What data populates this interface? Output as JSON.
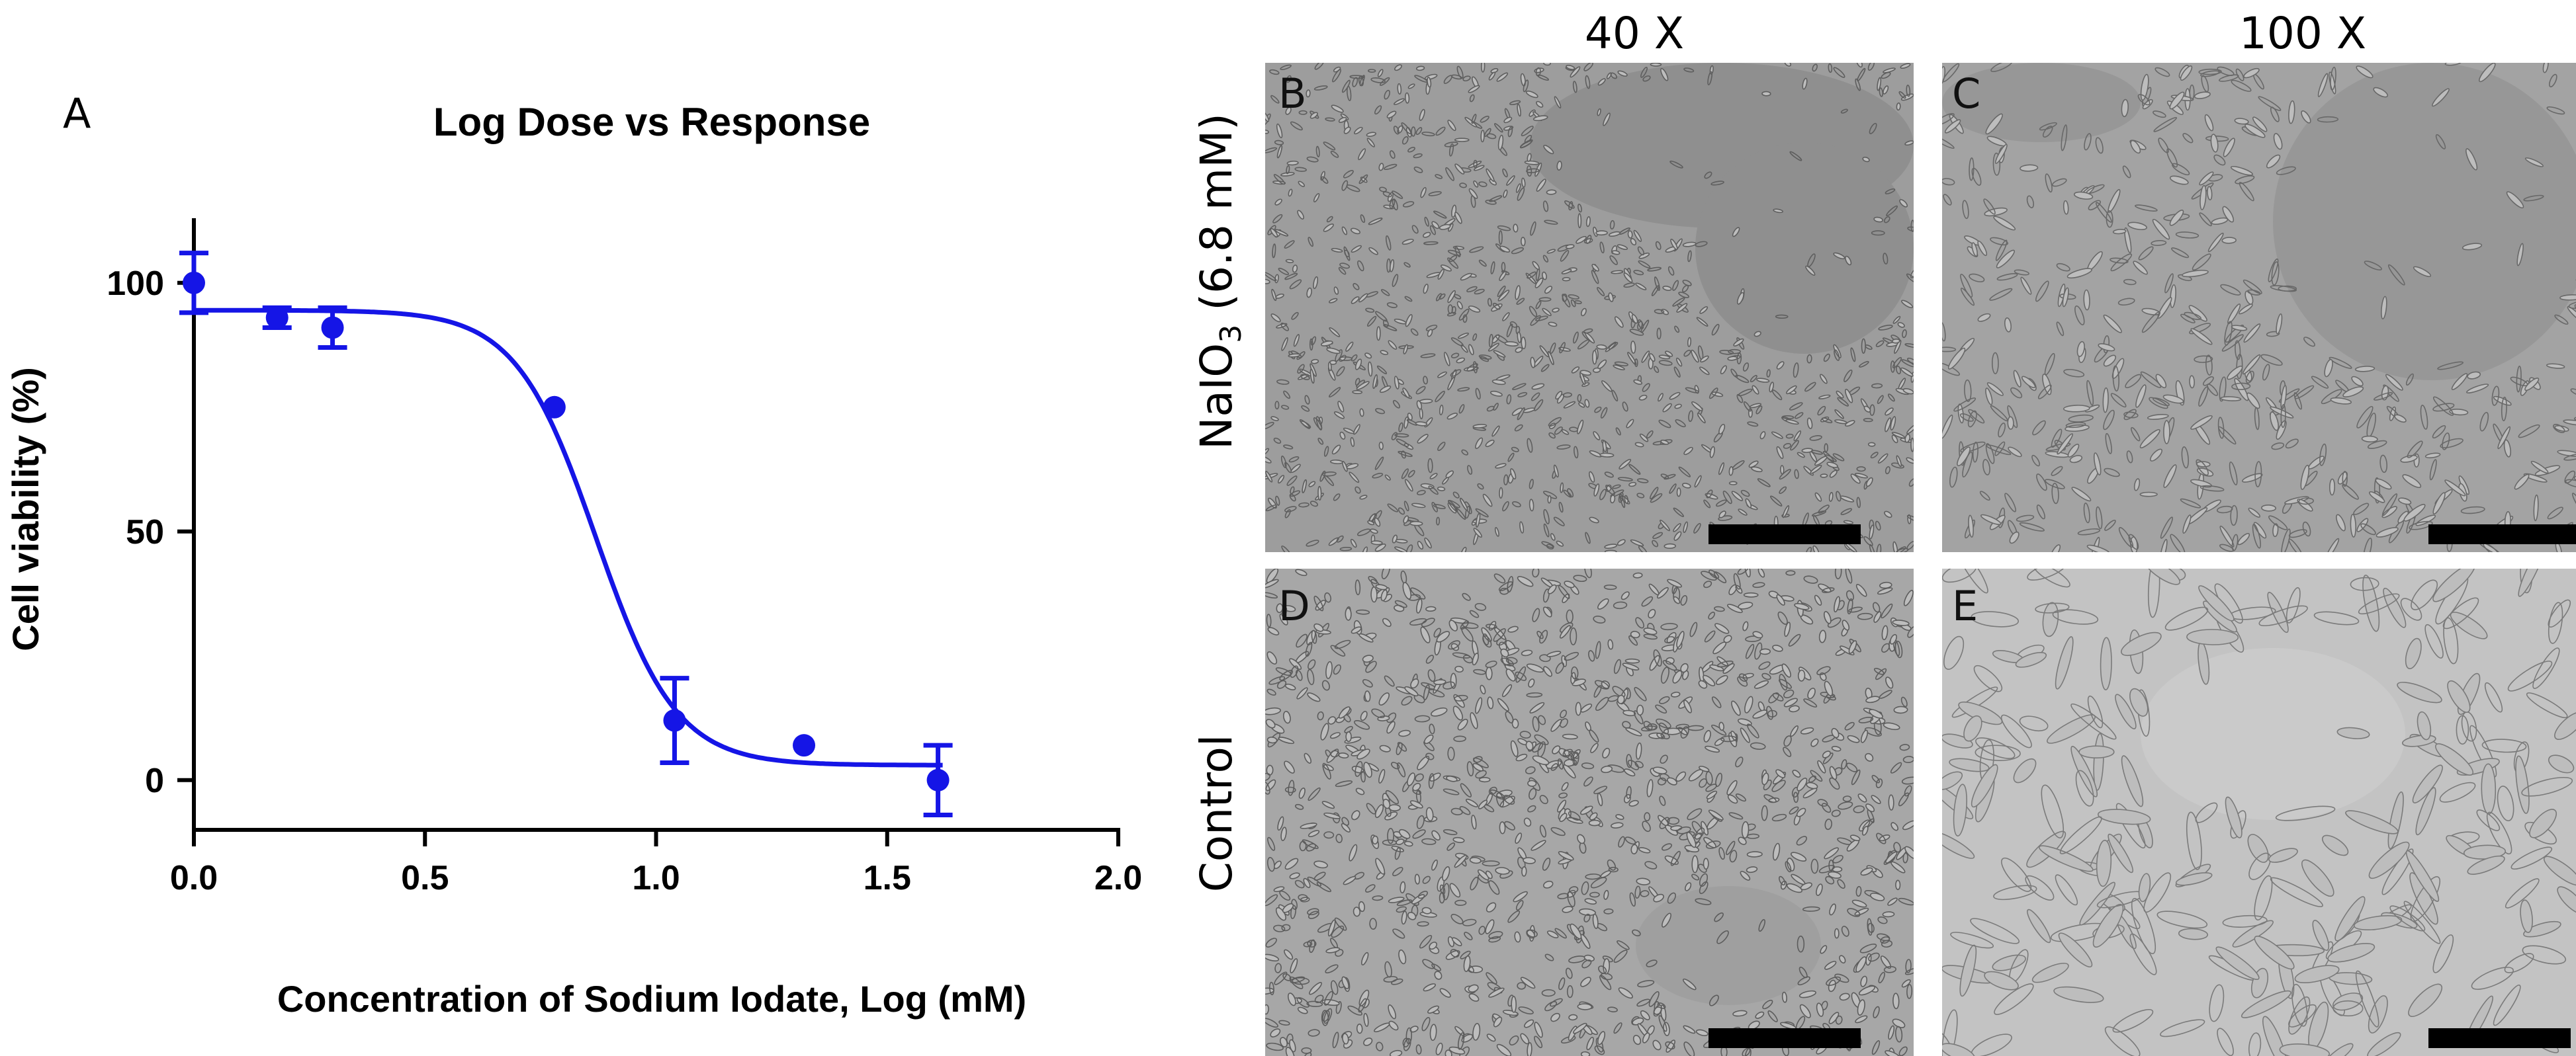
{
  "panel_a_letter": "A",
  "chart_data": {
    "type": "scatter",
    "title": "Log Dose vs Response",
    "xlabel": "Concentration of Sodium Iodate, Log (mM)",
    "ylabel": "Cell viability (%)",
    "xlim": [
      0.0,
      2.0
    ],
    "ylim": [
      -10,
      113
    ],
    "x_ticks": [
      "0.0",
      "0.5",
      "1.0",
      "1.5",
      "2.0"
    ],
    "x_tick_values": [
      0.0,
      0.5,
      1.0,
      1.5,
      2.0
    ],
    "y_ticks": [
      "0",
      "50",
      "100"
    ],
    "y_tick_values": [
      0,
      50,
      100
    ],
    "grid": false,
    "color": "#1515e6",
    "points": [
      {
        "x": 0.0,
        "y": 100,
        "err": 6
      },
      {
        "x": 0.18,
        "y": 93,
        "err": 2
      },
      {
        "x": 0.3,
        "y": 91,
        "err": 4
      },
      {
        "x": 0.78,
        "y": 75,
        "err": 0
      },
      {
        "x": 1.04,
        "y": 12,
        "err": 8.5
      },
      {
        "x": 1.32,
        "y": 7,
        "err": 0
      },
      {
        "x": 1.61,
        "y": 0,
        "err": 7
      }
    ],
    "fit": {
      "model": "sigmoidal dose-response",
      "top": 94.5,
      "bottom": 3,
      "log_ic50": 0.87,
      "hill_slope": -5
    }
  },
  "columns": [
    "40 X",
    "100 X"
  ],
  "rows": [
    {
      "label_main": "NaIO",
      "label_sub": "3",
      "label_tail": " (6.8 mM)"
    },
    {
      "label_main": "Control",
      "label_sub": "",
      "label_tail": ""
    }
  ],
  "images": [
    {
      "letter": "B",
      "kind": "treated-40x"
    },
    {
      "letter": "C",
      "kind": "treated-100x"
    },
    {
      "letter": "D",
      "kind": "control-40x"
    },
    {
      "letter": "E",
      "kind": "control-100x"
    }
  ],
  "colors": {
    "curve": "#1515e6",
    "micro_bg": "#a9a9a9"
  }
}
